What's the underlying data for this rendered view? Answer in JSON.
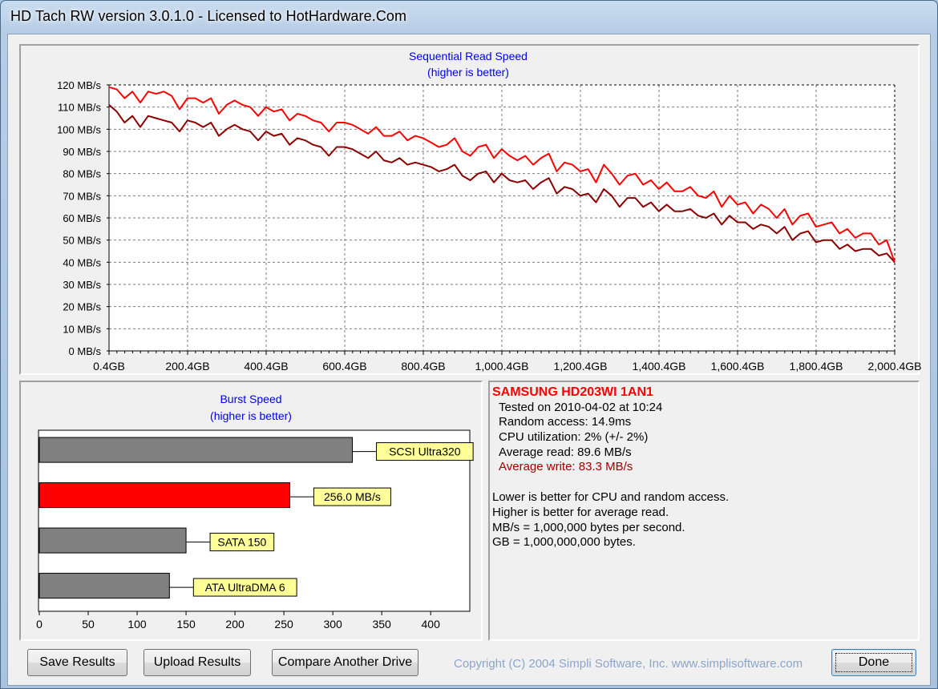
{
  "window": {
    "title": "HD Tach RW version 3.0.1.0 - Licensed to HotHardware.Com"
  },
  "seq_chart": {
    "title": "Sequential Read Speed",
    "subtitle": "(higher is better)",
    "y_ticks": [
      "120 MB/s",
      "110 MB/s",
      "100 MB/s",
      "90 MB/s",
      "80 MB/s",
      "70 MB/s",
      "60 MB/s",
      "50 MB/s",
      "40 MB/s",
      "30 MB/s",
      "20 MB/s",
      "10 MB/s",
      "0 MB/s"
    ],
    "x_ticks": [
      "0.4GB",
      "200.4GB",
      "400.4GB",
      "600.4GB",
      "800.4GB",
      "1,000.4GB",
      "1,200.4GB",
      "1,400.4GB",
      "1,600.4GB",
      "1,800.4GB",
      "2,000.4GB"
    ]
  },
  "burst_chart": {
    "title": "Burst Speed",
    "subtitle": "(higher is better)",
    "x_ticks": [
      "0",
      "50",
      "100",
      "150",
      "200",
      "250",
      "300",
      "350",
      "400"
    ],
    "bars": [
      {
        "label": "SCSI Ultra320",
        "color": "#808080"
      },
      {
        "label": "256.0 MB/s",
        "color": "#ff0000"
      },
      {
        "label": "SATA 150",
        "color": "#808080"
      },
      {
        "label": "ATA UltraDMA 6",
        "color": "#808080"
      }
    ]
  },
  "chart_data": [
    {
      "type": "line",
      "title": "Sequential Read Speed",
      "subtitle": "(higher is better)",
      "xlim": [
        0.4,
        2000.4
      ],
      "ylim": [
        0,
        120
      ],
      "grid": true,
      "x_tick_labels": [
        "0.4GB",
        "200.4GB",
        "400.4GB",
        "600.4GB",
        "800.4GB",
        "1,000.4GB",
        "1,200.4GB",
        "1,400.4GB",
        "1,600.4GB",
        "1,800.4GB",
        "2,000.4GB"
      ],
      "y_tick_labels": [
        "0 MB/s",
        "10 MB/s",
        "20 MB/s",
        "30 MB/s",
        "40 MB/s",
        "50 MB/s",
        "60 MB/s",
        "70 MB/s",
        "80 MB/s",
        "90 MB/s",
        "100 MB/s",
        "110 MB/s",
        "120 MB/s"
      ],
      "x": [
        0.4,
        20,
        40,
        60,
        80,
        100,
        120,
        140,
        160,
        180,
        200,
        220,
        240,
        260,
        280,
        300,
        320,
        340,
        360,
        380,
        400,
        420,
        440,
        460,
        480,
        500,
        520,
        540,
        560,
        580,
        600,
        620,
        640,
        660,
        680,
        700,
        720,
        740,
        760,
        780,
        800,
        820,
        840,
        860,
        880,
        900,
        920,
        940,
        960,
        980,
        1000,
        1020,
        1040,
        1060,
        1080,
        1100,
        1120,
        1140,
        1160,
        1180,
        1200,
        1220,
        1240,
        1260,
        1280,
        1300,
        1320,
        1340,
        1360,
        1380,
        1400,
        1420,
        1440,
        1460,
        1480,
        1500,
        1520,
        1540,
        1560,
        1580,
        1600,
        1620,
        1640,
        1660,
        1680,
        1700,
        1720,
        1740,
        1760,
        1780,
        1800,
        1820,
        1840,
        1860,
        1880,
        1900,
        1920,
        1940,
        1960,
        1980,
        2000.4
      ],
      "series": [
        {
          "color": "#ff0000",
          "values": [
            119,
            118,
            114,
            117,
            112,
            117,
            116,
            117,
            115,
            109,
            114,
            114,
            112,
            114,
            107,
            111,
            113,
            111,
            110,
            106,
            110,
            108,
            109,
            104,
            107,
            106,
            104,
            103,
            99,
            103,
            103,
            102,
            100,
            98,
            101,
            97,
            97,
            99,
            95,
            97,
            96,
            94,
            92,
            93,
            96,
            90,
            88,
            92,
            93,
            87,
            91,
            88,
            86,
            88,
            84,
            87,
            89,
            81,
            85,
            84,
            81,
            82,
            76,
            84,
            80,
            75,
            79,
            80,
            75,
            77,
            73,
            76,
            72,
            72,
            74,
            70,
            69,
            72,
            65,
            70,
            66,
            67,
            62,
            66,
            64,
            60,
            64,
            57,
            61,
            62,
            56,
            57,
            58,
            53,
            55,
            51,
            53,
            53,
            48,
            50,
            40
          ]
        },
        {
          "color": "#8b0000",
          "values": [
            111,
            108,
            103,
            106,
            101,
            106,
            105,
            104,
            103,
            99,
            104,
            103,
            101,
            103,
            97,
            100,
            102,
            100,
            99,
            95,
            99,
            97,
            98,
            93,
            96,
            95,
            93,
            92,
            88,
            92,
            92,
            91,
            89,
            87,
            90,
            86,
            85,
            87,
            84,
            85,
            84,
            83,
            81,
            82,
            84,
            79,
            77,
            80,
            81,
            76,
            80,
            77,
            76,
            77,
            73,
            76,
            78,
            71,
            74,
            73,
            70,
            71,
            67,
            73,
            70,
            65,
            69,
            69,
            65,
            67,
            63,
            66,
            63,
            63,
            64,
            61,
            60,
            62,
            57,
            61,
            58,
            58,
            55,
            57,
            56,
            53,
            56,
            50,
            53,
            54,
            49,
            50,
            50,
            46,
            48,
            45,
            46,
            46,
            43,
            44,
            40
          ]
        }
      ]
    },
    {
      "type": "bar",
      "orientation": "horizontal",
      "title": "Burst Speed",
      "subtitle": "(higher is better)",
      "xlim": [
        0,
        440
      ],
      "x_tick_labels": [
        "0",
        "50",
        "100",
        "150",
        "200",
        "250",
        "300",
        "350",
        "400"
      ],
      "categories": [
        "SCSI Ultra320",
        "256.0 MB/s",
        "SATA 150",
        "ATA UltraDMA 6"
      ],
      "values": [
        320,
        256,
        150,
        133
      ],
      "colors": [
        "#808080",
        "#ff0000",
        "#808080",
        "#808080"
      ]
    }
  ],
  "info": {
    "drive": "SAMSUNG HD203WI 1AN1",
    "tested": "Tested on 2010-04-02 at 10:24",
    "random": "Random access: 14.9ms",
    "cpu": "CPU utilization: 2% (+/- 2%)",
    "avg_read": "Average read: 89.6 MB/s",
    "avg_write": "Average write: 83.3 MB/s",
    "note1": "Lower is better for CPU and random access.",
    "note2": "Higher is better for average read.",
    "note3": "MB/s = 1,000,000 bytes per second.",
    "note4": "GB = 1,000,000,000 bytes.",
    "drive_color": "#ff0000",
    "write_color": "#a00000"
  },
  "buttons": {
    "save": "Save Results",
    "upload": "Upload Results",
    "compare": "Compare Another Drive",
    "done": "Done"
  },
  "copyright": "Copyright (C) 2004 Simpli Software, Inc. www.simplisoftware.com"
}
